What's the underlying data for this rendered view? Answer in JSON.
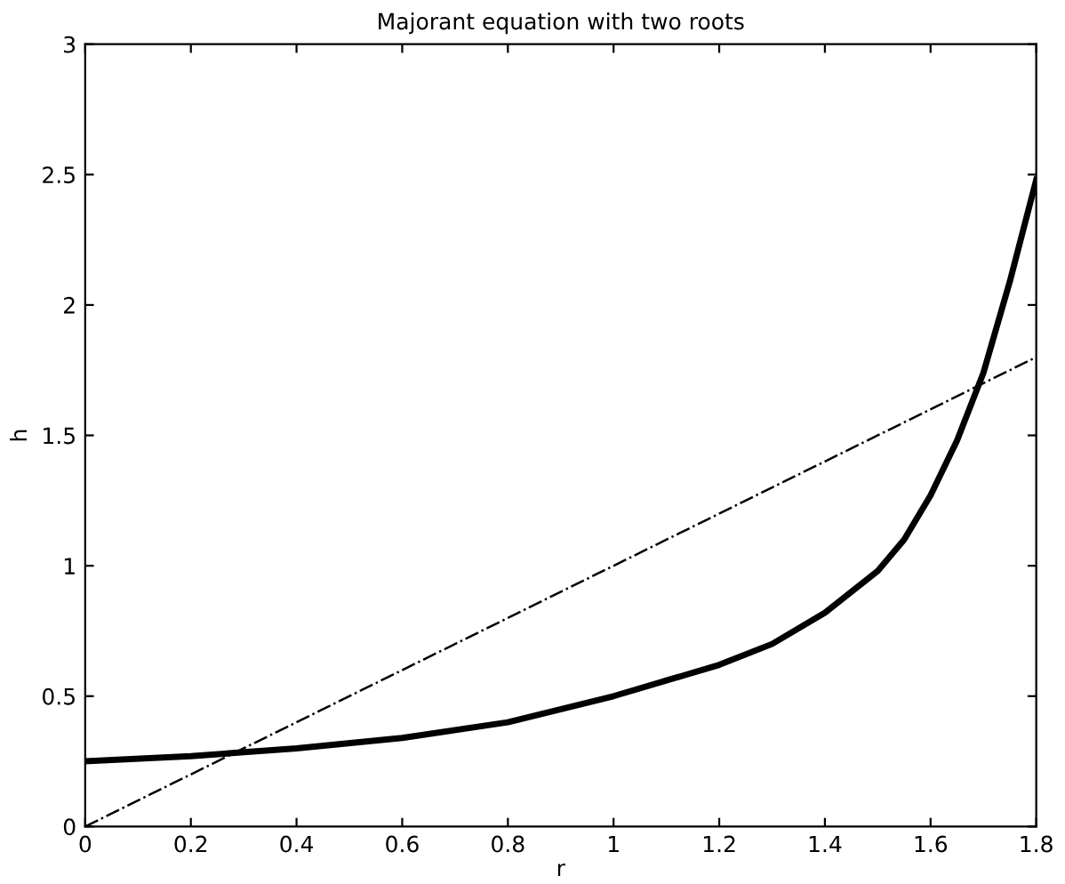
{
  "chart_data": {
    "type": "line",
    "title": "Majorant equation with two roots",
    "xlabel": "r",
    "ylabel": "h",
    "xlim": [
      0,
      1.8
    ],
    "ylim": [
      0,
      3
    ],
    "xticks": [
      0,
      0.2,
      0.4,
      0.6,
      0.8,
      1,
      1.2,
      1.4,
      1.6,
      1.8
    ],
    "yticks": [
      0,
      0.5,
      1,
      1.5,
      2,
      2.5,
      3
    ],
    "grid": false,
    "legend": false,
    "series": [
      {
        "color": "#000000",
        "line_style": "solid",
        "x": [
          0,
          0.2,
          0.4,
          0.6,
          0.8,
          1.0,
          1.1,
          1.2,
          1.3,
          1.4,
          1.5,
          1.55,
          1.6,
          1.65,
          1.7,
          1.75,
          1.8
        ],
        "values": [
          0.25,
          0.27,
          0.3,
          0.34,
          0.4,
          0.5,
          0.56,
          0.62,
          0.7,
          0.82,
          0.98,
          1.1,
          1.27,
          1.48,
          1.74,
          2.09,
          2.48
        ]
      },
      {
        "color": "#000000",
        "line_style": "dashdot",
        "x": [
          0,
          1.8
        ],
        "values": [
          0,
          1.8
        ]
      }
    ]
  }
}
